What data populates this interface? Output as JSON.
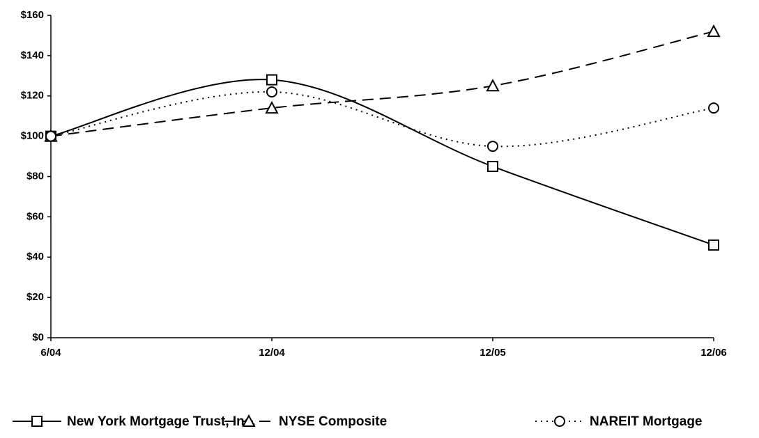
{
  "chart_data": {
    "type": "line",
    "categories": [
      "6/04",
      "12/04",
      "12/05",
      "12/06"
    ],
    "series": [
      {
        "name": "New York Mortgage Trust, Inc.",
        "color": "#000000",
        "line_style": "solid",
        "marker": "square",
        "values": [
          100,
          128,
          85,
          46
        ]
      },
      {
        "name": "NYSE Composite",
        "color": "#000000",
        "line_style": "dashed",
        "marker": "triangle",
        "values": [
          100,
          114,
          125,
          152
        ]
      },
      {
        "name": "NAREIT Mortgage",
        "color": "#000000",
        "line_style": "dotted",
        "marker": "circle",
        "values": [
          100,
          122,
          95,
          114
        ]
      }
    ],
    "ylim": [
      0,
      160
    ],
    "yticks": [
      {
        "value": 0,
        "label": "$0"
      },
      {
        "value": 20,
        "label": "$20"
      },
      {
        "value": 40,
        "label": "$40"
      },
      {
        "value": 60,
        "label": "$60"
      },
      {
        "value": 80,
        "label": "$80"
      },
      {
        "value": 100,
        "label": "$100"
      },
      {
        "value": 120,
        "label": "$120"
      },
      {
        "value": 140,
        "label": "$140"
      },
      {
        "value": 160,
        "label": "$160"
      }
    ],
    "grid": false,
    "legend": "bottom"
  }
}
